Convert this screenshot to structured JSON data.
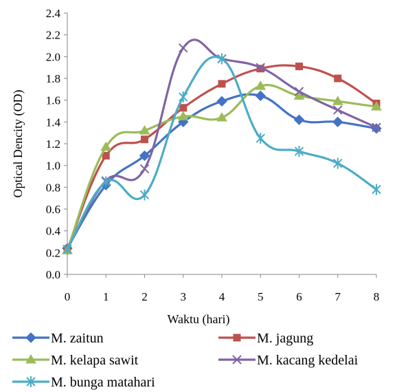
{
  "chart_data": {
    "type": "line",
    "xlabel": "Waktu (hari)",
    "ylabel": "Optical Dencity (OD)",
    "x": [
      0,
      1,
      2,
      3,
      4,
      5,
      6,
      7,
      8
    ],
    "ylim": [
      0,
      2.4
    ],
    "yticks": [
      "0.0",
      "0.2",
      "0.4",
      "0.6",
      "0.8",
      "1.0",
      "1.2",
      "1.4",
      "1.6",
      "1.8",
      "2.0",
      "2.2",
      "2.4"
    ],
    "xticks": [
      "0",
      "1",
      "2",
      "3",
      "4",
      "5",
      "6",
      "7",
      "8"
    ],
    "grid": false,
    "legend_position": "bottom",
    "series": [
      {
        "name": "M. zaitun",
        "color": "#4472C4",
        "marker": "diamond",
        "values": [
          0.24,
          0.82,
          1.09,
          1.4,
          1.59,
          1.64,
          1.42,
          1.4,
          1.34
        ]
      },
      {
        "name": "M. jagung",
        "color": "#C0504D",
        "marker": "square",
        "values": [
          0.23,
          1.09,
          1.24,
          1.53,
          1.75,
          1.89,
          1.91,
          1.8,
          1.57
        ]
      },
      {
        "name": "M. kelapa sawit",
        "color": "#9BBB59",
        "marker": "triangle",
        "values": [
          0.22,
          1.17,
          1.32,
          1.45,
          1.44,
          1.73,
          1.64,
          1.59,
          1.54
        ]
      },
      {
        "name": "M. kacang kedelai",
        "color": "#8064A2",
        "marker": "x",
        "values": [
          0.23,
          0.86,
          0.97,
          2.08,
          1.98,
          1.9,
          1.68,
          1.51,
          1.35
        ]
      },
      {
        "name": "M. bunga matahari",
        "color": "#4BACC6",
        "marker": "star",
        "values": [
          0.23,
          0.85,
          0.73,
          1.63,
          1.98,
          1.25,
          1.13,
          1.02,
          0.78
        ]
      }
    ]
  }
}
